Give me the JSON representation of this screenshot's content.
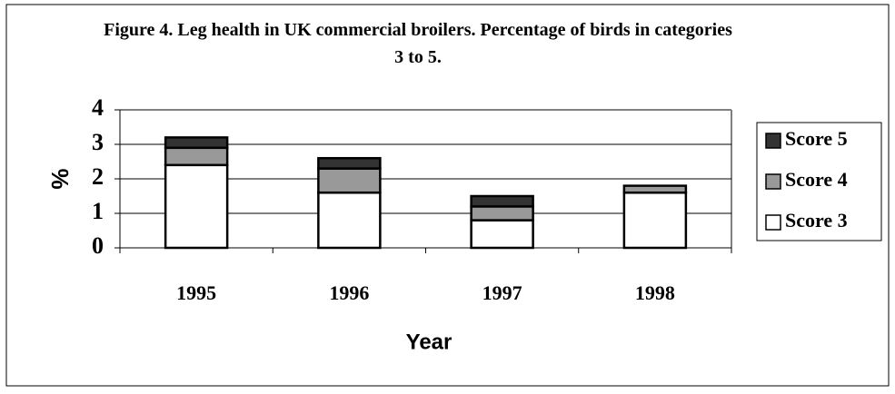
{
  "chart_data": {
    "type": "stacked_bar",
    "title": "Figure 4. Leg health in UK commercial broilers. Percentage of birds in categories 3 to 5.",
    "x_label": "Year",
    "y_label": "%",
    "categories": [
      "1995",
      "1996",
      "1997",
      "1998"
    ],
    "series": [
      {
        "name": "Score 3",
        "color": "#ffffff",
        "values": [
          2.4,
          1.6,
          0.8,
          1.6
        ]
      },
      {
        "name": "Score 4",
        "color": "#999999",
        "values": [
          0.5,
          0.7,
          0.4,
          0.2
        ]
      },
      {
        "name": "Score 5",
        "color": "#333333",
        "values": [
          0.3,
          0.3,
          0.3,
          0
        ]
      }
    ],
    "ylim": [
      0,
      4
    ],
    "yticks": [
      0,
      1,
      2,
      3,
      4
    ],
    "grid": true,
    "legend": "right"
  }
}
